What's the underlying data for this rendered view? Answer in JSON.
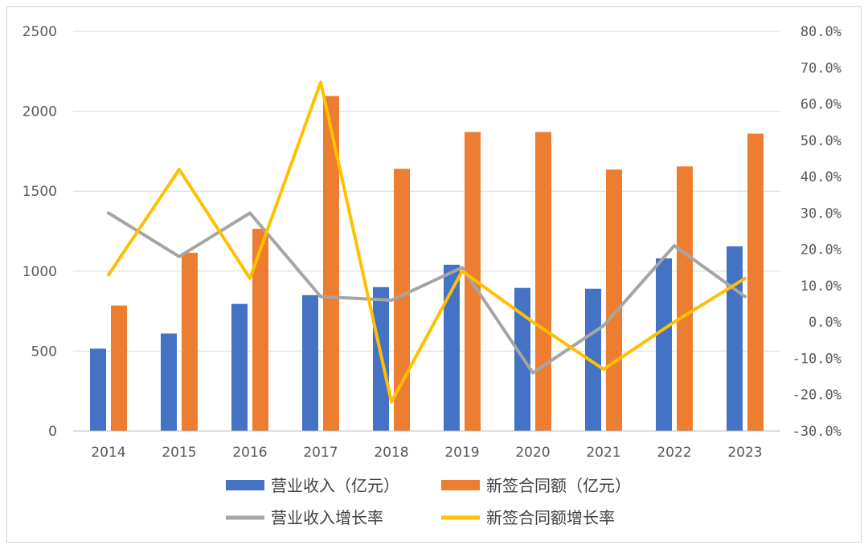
{
  "chart_data": {
    "type": "bar",
    "categories": [
      "2014",
      "2015",
      "2016",
      "2017",
      "2018",
      "2019",
      "2020",
      "2021",
      "2022",
      "2023"
    ],
    "y_left": {
      "ylim": [
        0,
        2500
      ],
      "ticks": [
        "0",
        "500",
        "1000",
        "1500",
        "2000",
        "2500"
      ]
    },
    "y_right": {
      "ylim": [
        -0.3,
        0.8
      ],
      "ticks": [
        "-30.0%",
        "-20.0%",
        "-10.0%",
        "0.0%",
        "10.0%",
        "20.0%",
        "30.0%",
        "40.0%",
        "50.0%",
        "60.0%",
        "70.0%",
        "80.0%"
      ]
    },
    "grid": true,
    "legend_position": "bottom",
    "series": [
      {
        "name": "营业收入（亿元）",
        "kind": "bar",
        "axis": "left",
        "color": "#4472C4",
        "values": [
          515,
          610,
          795,
          850,
          900,
          1040,
          895,
          890,
          1080,
          1155
        ]
      },
      {
        "name": "新签合同额（亿元）",
        "kind": "bar",
        "axis": "left",
        "color": "#ED7D31",
        "values": [
          785,
          1115,
          1265,
          2095,
          1640,
          1870,
          1870,
          1635,
          1655,
          1860
        ]
      },
      {
        "name": "营业收入增长率",
        "kind": "line",
        "axis": "right",
        "color": "#A5A5A5",
        "values": [
          0.3,
          0.18,
          0.3,
          0.07,
          0.06,
          0.15,
          -0.14,
          -0.01,
          0.21,
          0.07
        ]
      },
      {
        "name": "新签合同额增长率",
        "kind": "line",
        "axis": "right",
        "color": "#FFC000",
        "values": [
          0.13,
          0.42,
          0.12,
          0.66,
          -0.22,
          0.14,
          0.0,
          -0.13,
          0.0,
          0.12
        ]
      }
    ]
  }
}
